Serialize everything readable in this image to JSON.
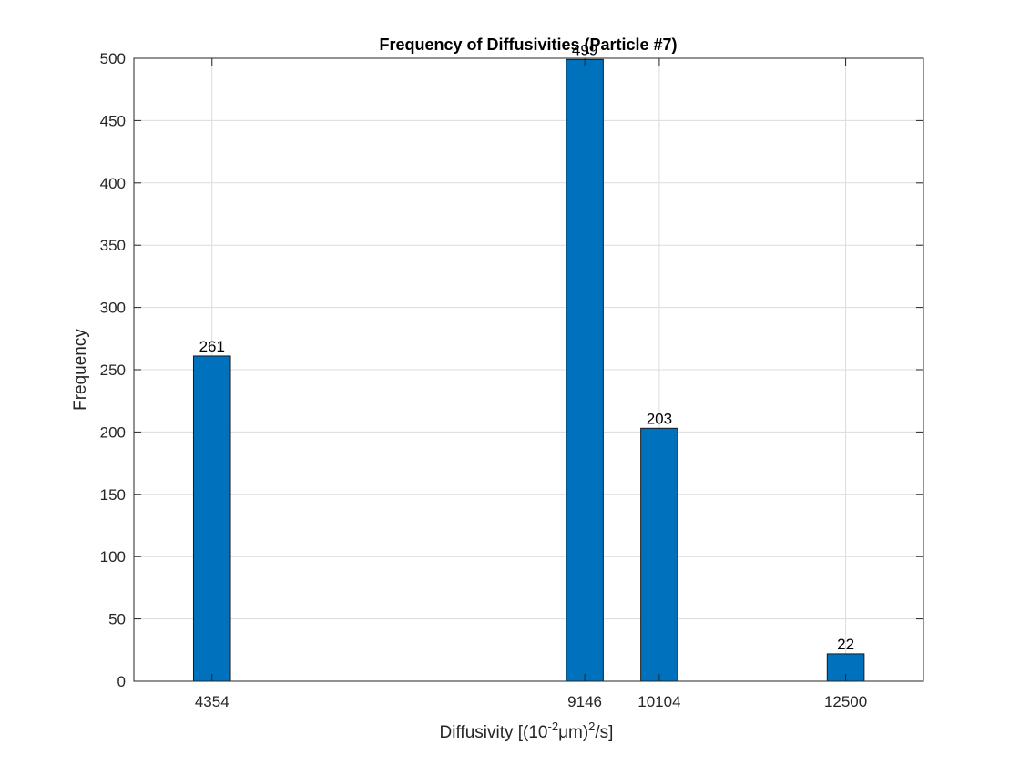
{
  "chart_data": {
    "type": "bar",
    "title": "Frequency of Diffusivities (Particle #7)",
    "xlabel": {
      "prefix": "Diffusivity [(10",
      "exp1": "-2",
      "middle": "μm)",
      "exp2": "2",
      "suffix": "/s]"
    },
    "ylabel": "Frequency",
    "x": [
      4354,
      9146,
      10104,
      12500
    ],
    "x_tick_labels": [
      "4354",
      "9146",
      "10104",
      "12500"
    ],
    "values": [
      261,
      499,
      203,
      22
    ],
    "data_labels": [
      "261",
      "499",
      "203",
      "22"
    ],
    "xlim": [
      3350,
      13500
    ],
    "ylim": [
      0,
      500
    ],
    "y_ticks": [
      0,
      50,
      100,
      150,
      200,
      250,
      300,
      350,
      400,
      450,
      500
    ],
    "bar_width": 475,
    "bar_color": "#0072BD",
    "grid": true
  }
}
